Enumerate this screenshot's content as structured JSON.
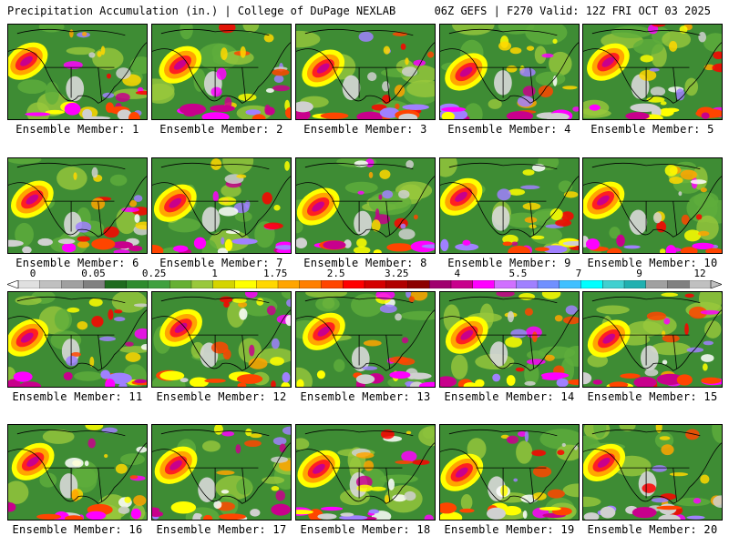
{
  "header": {
    "title": "Precipitation Accumulation (in.) | College of DuPage NEXLAB",
    "run_info": "06Z GEFS | F270 Valid: 12Z FRI OCT 03 2025"
  },
  "panels": [
    {
      "label": "Ensemble Member: 1"
    },
    {
      "label": "Ensemble Member: 2"
    },
    {
      "label": "Ensemble Member: 3"
    },
    {
      "label": "Ensemble Member: 4"
    },
    {
      "label": "Ensemble Member: 5"
    },
    {
      "label": "Ensemble Member: 6"
    },
    {
      "label": "Ensemble Member: 7"
    },
    {
      "label": "Ensemble Member: 8"
    },
    {
      "label": "Ensemble Member: 9"
    },
    {
      "label": "Ensemble Member: 10"
    },
    {
      "label": "Ensemble Member: 11"
    },
    {
      "label": "Ensemble Member: 12"
    },
    {
      "label": "Ensemble Member: 13"
    },
    {
      "label": "Ensemble Member: 14"
    },
    {
      "label": "Ensemble Member: 15"
    },
    {
      "label": "Ensemble Member: 16"
    },
    {
      "label": "Ensemble Member: 17"
    },
    {
      "label": "Ensemble Member: 18"
    },
    {
      "label": "Ensemble Member: 19"
    },
    {
      "label": "Ensemble Member: 20"
    }
  ],
  "colorbar": {
    "tick_labels": [
      "0",
      "0.05",
      "0.25",
      "1",
      "1.75",
      "2.5",
      "3.25",
      "4",
      "5.5",
      "7",
      "9",
      "12"
    ],
    "colors": [
      "#e0e0e0",
      "#c0c0c0",
      "#a0a0a0",
      "#808080",
      "#1e6b1e",
      "#2e8b2e",
      "#3fa03f",
      "#66b032",
      "#99c83c",
      "#d4d400",
      "#ffff00",
      "#ffd700",
      "#ffa500",
      "#ff7f00",
      "#ff4500",
      "#ff0000",
      "#d40000",
      "#b00000",
      "#8b0000",
      "#a0006e",
      "#c8008c",
      "#ff00ff",
      "#d070ff",
      "#a080ff",
      "#7090ff",
      "#40c0ff",
      "#00ffff",
      "#40d0d0",
      "#20b0b0",
      "#a0a0a0",
      "#808080",
      "#c0c0c0"
    ]
  }
}
